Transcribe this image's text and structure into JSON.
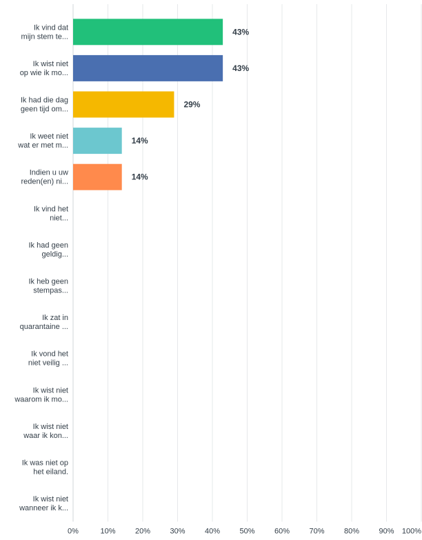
{
  "chart_data": {
    "type": "bar",
    "orientation": "horizontal",
    "categories": [
      [
        "Ik vind dat",
        "mijn stem te..."
      ],
      [
        "Ik wist niet",
        "op wie ik mo..."
      ],
      [
        "Ik had die dag",
        "geen tijd om..."
      ],
      [
        "Ik weet niet",
        "wat er met m..."
      ],
      [
        "Indien u uw",
        "reden(en) ni..."
      ],
      [
        "Ik vind het",
        "niet..."
      ],
      [
        "Ik had geen",
        "geldig..."
      ],
      [
        "Ik heb geen",
        "stempas..."
      ],
      [
        "Ik zat in",
        "quarantaine ..."
      ],
      [
        "Ik vond het",
        "niet veilig ..."
      ],
      [
        "Ik wist niet",
        "waarom ik mo..."
      ],
      [
        "Ik wist niet",
        "waar ik kon..."
      ],
      [
        "Ik was niet op",
        "het eiland."
      ],
      [
        "Ik wist niet",
        "wanneer ik k..."
      ]
    ],
    "values": [
      43,
      43,
      29,
      14,
      14,
      0,
      0,
      0,
      0,
      0,
      0,
      0,
      0,
      0
    ],
    "value_labels": [
      "43%",
      "43%",
      "29%",
      "14%",
      "14%",
      "",
      "",
      "",
      "",
      "",
      "",
      "",
      "",
      ""
    ],
    "bar_colors": [
      "#21c07a",
      "#4a6fb0",
      "#f5b800",
      "#6cc7cf",
      "#ff8a4c"
    ],
    "xlim": [
      0,
      100
    ],
    "x_ticks": [
      "0%",
      "10%",
      "20%",
      "30%",
      "40%",
      "50%",
      "60%",
      "70%",
      "80%",
      "90%",
      "100%"
    ],
    "grid": true,
    "title": "",
    "xlabel": "",
    "ylabel": ""
  }
}
